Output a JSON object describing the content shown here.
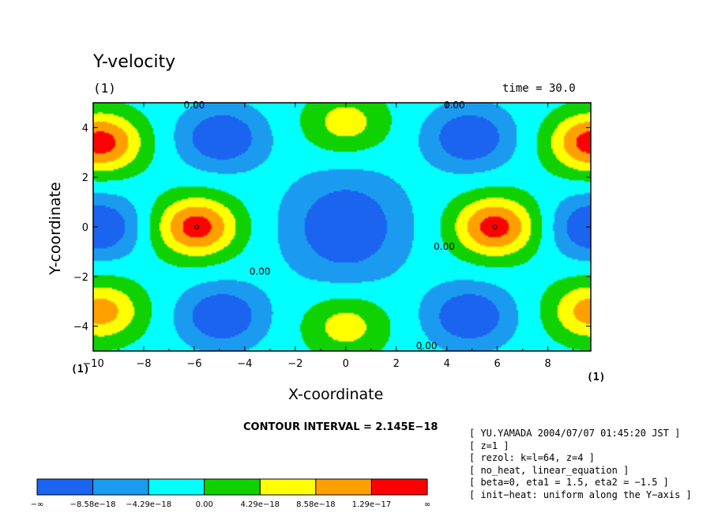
{
  "chart_data": {
    "type": "heatmap",
    "title": "Y-velocity",
    "panel_label": "(1)",
    "time_label": "time = 30.0",
    "xlabel": "X-coordinate",
    "ylabel": "Y-coordinate",
    "xlim": [
      -10,
      9.7
    ],
    "ylim": [
      -5,
      5
    ],
    "xticks": [
      -10,
      -8,
      -6,
      -4,
      -2,
      0,
      2,
      4,
      6,
      8
    ],
    "yticks": [
      -4,
      -2,
      0,
      2,
      4
    ],
    "xtick_labels": [
      "−10",
      "−8",
      "−6",
      "−4",
      "−2",
      "0",
      "2",
      "4",
      "6",
      "8"
    ],
    "ytick_labels": [
      "−4",
      "−2",
      "0",
      "2",
      "4"
    ],
    "axis_extra_labels": [
      "(1)",
      "(1)"
    ],
    "contour_interval_text": "CONTOUR INTERVAL = 2.145E−18",
    "contour_labels": [
      {
        "text": "0.00",
        "x": -6.0,
        "y": 4.9
      },
      {
        "text": "0.00",
        "x": 4.3,
        "y": 4.9
      },
      {
        "text": "0.00",
        "x": -3.4,
        "y": -1.8
      },
      {
        "text": "0.00",
        "x": 3.9,
        "y": -0.8
      },
      {
        "text": "0.00",
        "x": 3.2,
        "y": -4.8
      }
    ],
    "levels": [
      -8.58e-18,
      -4.29e-18,
      0.0,
      4.29e-18,
      8.58e-18,
      1.29e-17
    ],
    "colorbar": {
      "colors": [
        "#1a64f0",
        "#1b9bf0",
        "#00ffff",
        "#10d200",
        "#ffff00",
        "#ffa000",
        "#ff0000"
      ],
      "labels": [
        "−∞",
        "−8.58e−18",
        "−4.29e−18",
        "0.00",
        "4.29e−18",
        "8.58e−18",
        "1.29e−17",
        "∞"
      ]
    },
    "features": [
      {
        "x": -5.9,
        "y": 0,
        "sign": "max",
        "level": 6
      },
      {
        "x": 5.9,
        "y": 0,
        "sign": "max",
        "level": 6
      },
      {
        "x": -9.7,
        "y": 3.4,
        "sign": "max",
        "level": 6
      },
      {
        "x": 9.7,
        "y": 3.4,
        "sign": "max",
        "level": 6
      },
      {
        "x": -9.7,
        "y": -3.4,
        "sign": "max",
        "level": 5
      },
      {
        "x": 9.7,
        "y": -3.4,
        "sign": "max",
        "level": 5
      },
      {
        "x": 0,
        "y": 4.2,
        "sign": "max",
        "level": 4
      },
      {
        "x": 0,
        "y": -4.0,
        "sign": "max",
        "level": 4
      },
      {
        "x": 0,
        "y": 0,
        "sign": "min",
        "level": 0
      },
      {
        "x": -4.9,
        "y": 3.6,
        "sign": "min",
        "level": 0
      },
      {
        "x": 4.9,
        "y": 3.6,
        "sign": "min",
        "level": 0
      },
      {
        "x": -4.9,
        "y": -3.6,
        "sign": "min",
        "level": 0
      },
      {
        "x": 4.9,
        "y": -3.6,
        "sign": "min",
        "level": 0
      },
      {
        "x": -9.8,
        "y": 0,
        "sign": "min",
        "level": 0
      },
      {
        "x": 9.8,
        "y": 0,
        "sign": "min",
        "level": 0
      }
    ]
  },
  "info_lines": [
    "[ YU.YAMADA 2004/07/07 01:45:20 JST ]",
    "[ z=1 ]",
    "[ rezol: k=l=64, z=4 ]",
    "[ no_heat, linear_equation ]",
    "[ beta=0, eta1 = 1.5, eta2 = −1.5 ]",
    "[ init−heat: uniform along the Y−axis ]"
  ]
}
